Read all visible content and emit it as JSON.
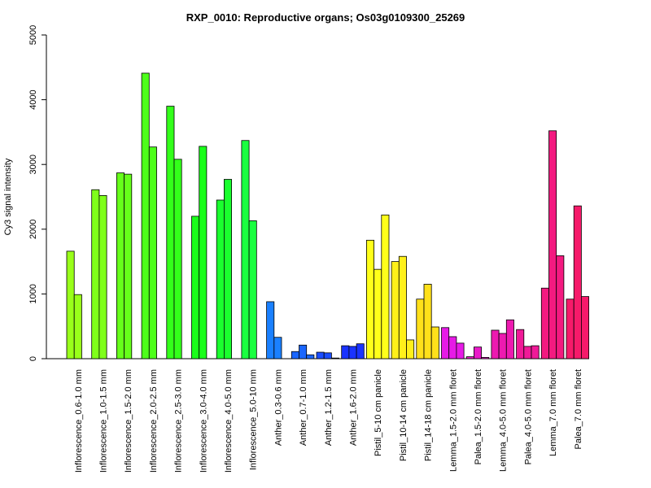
{
  "chart_data": {
    "type": "bar",
    "title": "RXP_0010: Reproductive organs; Os03g0109300_25269",
    "xlabel": "",
    "ylabel": "Cy3 signal intensity",
    "ylim": [
      0,
      5000
    ],
    "yticks": [
      0,
      1000,
      2000,
      3000,
      4000,
      5000
    ],
    "grid": false,
    "legend": "none",
    "groups": [
      {
        "label": "Inflorescence_0.6-1.0 mm",
        "color": "#99FF1A",
        "values": [
          1660,
          990
        ]
      },
      {
        "label": "Inflorescence_1.0-1.5 mm",
        "color": "#7FFF1A",
        "values": [
          2610,
          2520
        ]
      },
      {
        "label": "Inflorescence_1.5-2.0 mm",
        "color": "#66FF1A",
        "values": [
          2870,
          2850
        ]
      },
      {
        "label": "Inflorescence_2.0-2.5 mm",
        "color": "#4DFF1A",
        "values": [
          4410,
          3270
        ]
      },
      {
        "label": "Inflorescence_2.5-3.0 mm",
        "color": "#33FF1A",
        "values": [
          3900,
          3080
        ]
      },
      {
        "label": "Inflorescence_3.0-4.0 mm",
        "color": "#1AFF1A",
        "values": [
          2200,
          3280
        ]
      },
      {
        "label": "Inflorescence_4.0-5.0 mm",
        "color": "#1AFF2E",
        "values": [
          2450,
          2770
        ]
      },
      {
        "label": "Inflorescence_5.0-10 mm",
        "color": "#1AFF40",
        "values": [
          3370,
          2130
        ]
      },
      {
        "label": "Anther_0.3-0.6 mm",
        "color": "#1A80FF",
        "values": [
          880,
          330
        ]
      },
      {
        "label": "Anther_0.7-1.0 mm",
        "color": "#1A66FF",
        "values": [
          110,
          210,
          60
        ]
      },
      {
        "label": "Anther_1.2-1.5 mm",
        "color": "#1A4DFF",
        "values": [
          100,
          90,
          10
        ]
      },
      {
        "label": "Anther_1.6-2.0 mm",
        "color": "#1A33FF",
        "values": [
          200,
          190,
          230
        ]
      },
      {
        "label": "Pistil_5-10 cm panicle",
        "color": "#FFFF1A",
        "values": [
          1830,
          1380,
          2220
        ]
      },
      {
        "label": "Pistil_10-14 cm panicle",
        "color": "#FFF01A",
        "values": [
          1500,
          1580,
          290
        ]
      },
      {
        "label": "Pistil_14-18 cm panicle",
        "color": "#FFE01A",
        "values": [
          920,
          1150,
          490
        ]
      },
      {
        "label": "Lemma_1.5-2.0 mm floret",
        "color": "#E61AE6",
        "values": [
          480,
          340,
          240
        ]
      },
      {
        "label": "Palea_1.5-2.0 mm floret",
        "color": "#E91AC8",
        "values": [
          30,
          180,
          20
        ]
      },
      {
        "label": "Lemma_4.0-5.0 mm floret",
        "color": "#ED1AB0",
        "values": [
          440,
          390,
          600
        ]
      },
      {
        "label": "Palea_4.0-5.0 mm floret",
        "color": "#F01A98",
        "values": [
          450,
          190,
          200
        ]
      },
      {
        "label": "Lemma_7.0 mm floret",
        "color": "#F31A80",
        "values": [
          1090,
          3520,
          1590
        ]
      },
      {
        "label": "Palea_7.0 mm floret",
        "color": "#F61A6A",
        "values": [
          920,
          2360,
          960
        ]
      }
    ]
  }
}
